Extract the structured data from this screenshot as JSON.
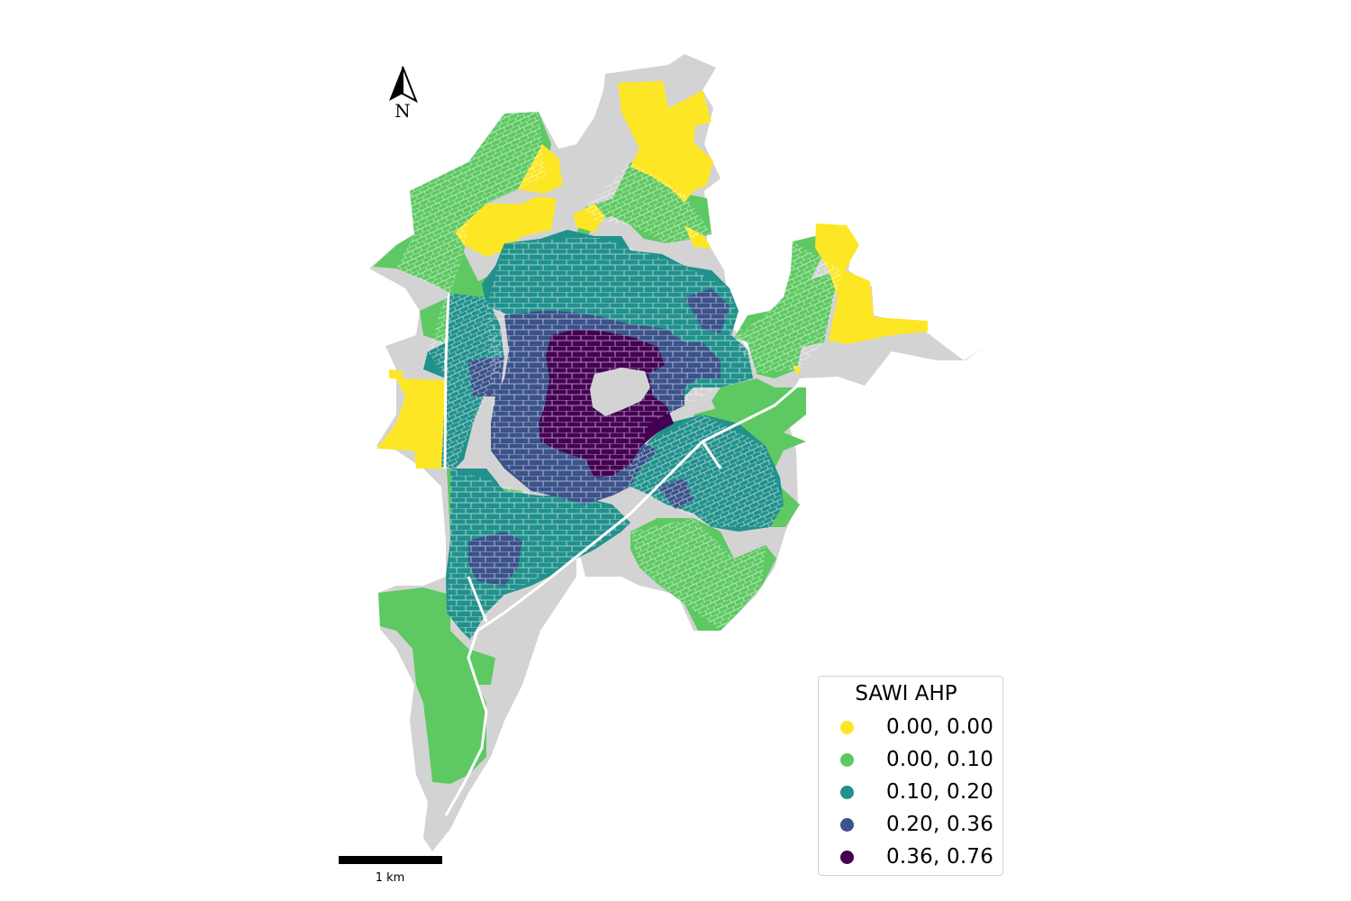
{
  "north_arrow": {
    "label": "N",
    "icon": "north-arrow-icon"
  },
  "scale_bar": {
    "label": "1 km"
  },
  "legend": {
    "title": "SAWI AHP",
    "items": [
      {
        "label": "0.00, 0.00",
        "color": "#fde725"
      },
      {
        "label": "0.00, 0.10",
        "color": "#5ec962"
      },
      {
        "label": "0.10, 0.20",
        "color": "#21918c"
      },
      {
        "label": "0.20, 0.36",
        "color": "#3b528b"
      },
      {
        "label": "0.36, 0.76",
        "color": "#440154"
      }
    ]
  },
  "colors": {
    "no_data": "#d3d3d3",
    "background": "#ffffff"
  }
}
